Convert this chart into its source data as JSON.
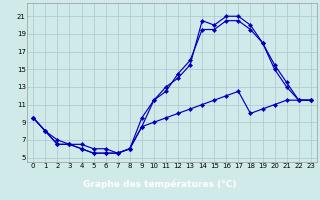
{
  "title": "Graphe des températures (°C)",
  "bg_color": "#d0eaea",
  "grid_color": "#a8ccd0",
  "line_color": "#0000bb",
  "xmin": 0,
  "xmax": 23,
  "ymin": 5,
  "ymax": 21,
  "yticks": [
    5,
    7,
    9,
    11,
    13,
    15,
    17,
    19,
    21
  ],
  "xticks": [
    0,
    1,
    2,
    3,
    4,
    5,
    6,
    7,
    8,
    9,
    10,
    11,
    12,
    13,
    14,
    15,
    16,
    17,
    18,
    19,
    20,
    21,
    22,
    23
  ],
  "line1_x": [
    0,
    1,
    2,
    3,
    4,
    5,
    6,
    7,
    8,
    9,
    10,
    11,
    12,
    13,
    14,
    15,
    16,
    17,
    18,
    19,
    20,
    21,
    22,
    23
  ],
  "line1_y": [
    9.5,
    8.0,
    6.5,
    6.5,
    6.0,
    5.5,
    5.5,
    5.5,
    6.0,
    8.5,
    11.5,
    13.0,
    14.0,
    15.5,
    20.5,
    20.0,
    21.0,
    21.0,
    20.0,
    18.0,
    15.5,
    13.5,
    11.5,
    11.5
  ],
  "line2_x": [
    0,
    1,
    2,
    3,
    4,
    5,
    6,
    7,
    8,
    9,
    10,
    11,
    12,
    13,
    14,
    15,
    16,
    17,
    18,
    19,
    20,
    21,
    22,
    23
  ],
  "line2_y": [
    9.5,
    8.0,
    6.5,
    6.5,
    6.0,
    5.5,
    5.5,
    5.5,
    6.0,
    9.5,
    11.5,
    12.5,
    14.5,
    16.0,
    19.5,
    19.5,
    20.5,
    20.5,
    19.5,
    18.0,
    15.0,
    13.0,
    11.5,
    11.5
  ],
  "line3_x": [
    0,
    1,
    2,
    3,
    4,
    5,
    6,
    7,
    8,
    9,
    10,
    11,
    12,
    13,
    14,
    15,
    16,
    17,
    18,
    19,
    20,
    21,
    22,
    23
  ],
  "line3_y": [
    9.5,
    8.0,
    7.0,
    6.5,
    6.5,
    6.0,
    6.0,
    5.5,
    6.0,
    8.5,
    9.0,
    9.5,
    10.0,
    10.5,
    11.0,
    11.5,
    12.0,
    12.5,
    10.0,
    10.5,
    11.0,
    11.5,
    11.5,
    11.5
  ],
  "xlabel_bg": "#2222aa",
  "xlabel_color": "#ffffff",
  "xlabel_fontsize": 6.5,
  "tick_fontsize": 5.0,
  "lw": 0.85,
  "marker_size": 2.2
}
